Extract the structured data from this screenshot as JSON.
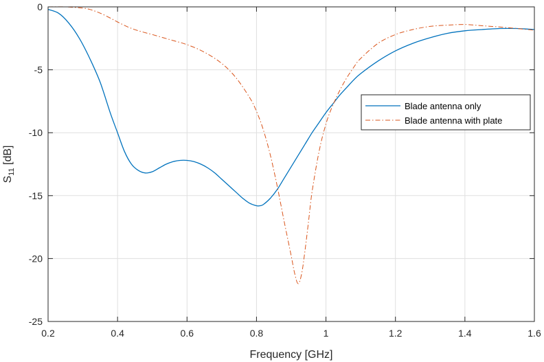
{
  "chart_data": {
    "type": "line",
    "title": "",
    "xlabel": "Frequency [GHz]",
    "ylabel": {
      "main": "S",
      "subscript": "11",
      "unit": " [dB]"
    },
    "xlim": [
      0.2,
      1.6
    ],
    "ylim": [
      -25,
      0
    ],
    "x_ticks": [
      0.2,
      0.4,
      0.6,
      0.8,
      1.0,
      1.2,
      1.4,
      1.6
    ],
    "x_tick_labels": [
      "0.2",
      "0.4",
      "0.6",
      "0.8",
      "1",
      "1.2",
      "1.4",
      "1.6"
    ],
    "y_ticks": [
      -25,
      -20,
      -15,
      -10,
      -5,
      0
    ],
    "y_tick_labels": [
      "-25",
      "-20",
      "-15",
      "-10",
      "-5",
      "0"
    ],
    "grid": true,
    "legend_position": "right",
    "series": [
      {
        "name": "Blade antenna only",
        "color": "#0072bd",
        "style": "solid",
        "x": [
          0.2,
          0.23,
          0.26,
          0.29,
          0.32,
          0.35,
          0.38,
          0.4,
          0.42,
          0.44,
          0.46,
          0.48,
          0.5,
          0.52,
          0.54,
          0.56,
          0.58,
          0.6,
          0.62,
          0.64,
          0.66,
          0.68,
          0.7,
          0.72,
          0.74,
          0.76,
          0.78,
          0.8,
          0.81,
          0.82,
          0.84,
          0.86,
          0.88,
          0.9,
          0.92,
          0.94,
          0.96,
          0.98,
          1.0,
          1.02,
          1.04,
          1.06,
          1.08,
          1.1,
          1.15,
          1.2,
          1.25,
          1.3,
          1.35,
          1.4,
          1.45,
          1.5,
          1.55,
          1.6
        ],
        "y": [
          -0.2,
          -0.5,
          -1.3,
          -2.5,
          -4.1,
          -6.0,
          -8.5,
          -10.0,
          -11.5,
          -12.5,
          -13.0,
          -13.2,
          -13.1,
          -12.8,
          -12.5,
          -12.3,
          -12.2,
          -12.2,
          -12.3,
          -12.5,
          -12.8,
          -13.2,
          -13.7,
          -14.2,
          -14.7,
          -15.2,
          -15.6,
          -15.8,
          -15.8,
          -15.7,
          -15.2,
          -14.5,
          -13.6,
          -12.7,
          -11.8,
          -10.9,
          -10.0,
          -9.2,
          -8.4,
          -7.7,
          -7.0,
          -6.4,
          -5.8,
          -5.3,
          -4.3,
          -3.5,
          -2.9,
          -2.45,
          -2.1,
          -1.9,
          -1.8,
          -1.72,
          -1.72,
          -1.8
        ]
      },
      {
        "name": "Blade antenna with plate",
        "color": "#d95319",
        "style": "dashdot",
        "x": [
          0.2,
          0.25,
          0.3,
          0.32,
          0.35,
          0.38,
          0.4,
          0.43,
          0.46,
          0.5,
          0.55,
          0.6,
          0.65,
          0.7,
          0.74,
          0.78,
          0.8,
          0.82,
          0.84,
          0.86,
          0.88,
          0.9,
          0.91,
          0.92,
          0.93,
          0.94,
          0.95,
          0.96,
          0.98,
          1.0,
          1.02,
          1.05,
          1.08,
          1.1,
          1.15,
          1.2,
          1.25,
          1.3,
          1.35,
          1.4,
          1.45,
          1.5,
          1.55,
          1.6
        ],
        "y": [
          0.0,
          0.0,
          -0.1,
          -0.2,
          -0.5,
          -0.9,
          -1.2,
          -1.6,
          -1.9,
          -2.2,
          -2.6,
          -3.0,
          -3.6,
          -4.5,
          -5.6,
          -7.2,
          -8.3,
          -9.8,
          -11.8,
          -14.3,
          -17.1,
          -19.8,
          -21.2,
          -22.0,
          -21.2,
          -19.3,
          -17.0,
          -14.7,
          -11.5,
          -9.3,
          -7.8,
          -6.1,
          -4.8,
          -4.1,
          -2.9,
          -2.2,
          -1.8,
          -1.55,
          -1.45,
          -1.4,
          -1.5,
          -1.6,
          -1.72,
          -1.85
        ]
      }
    ]
  }
}
